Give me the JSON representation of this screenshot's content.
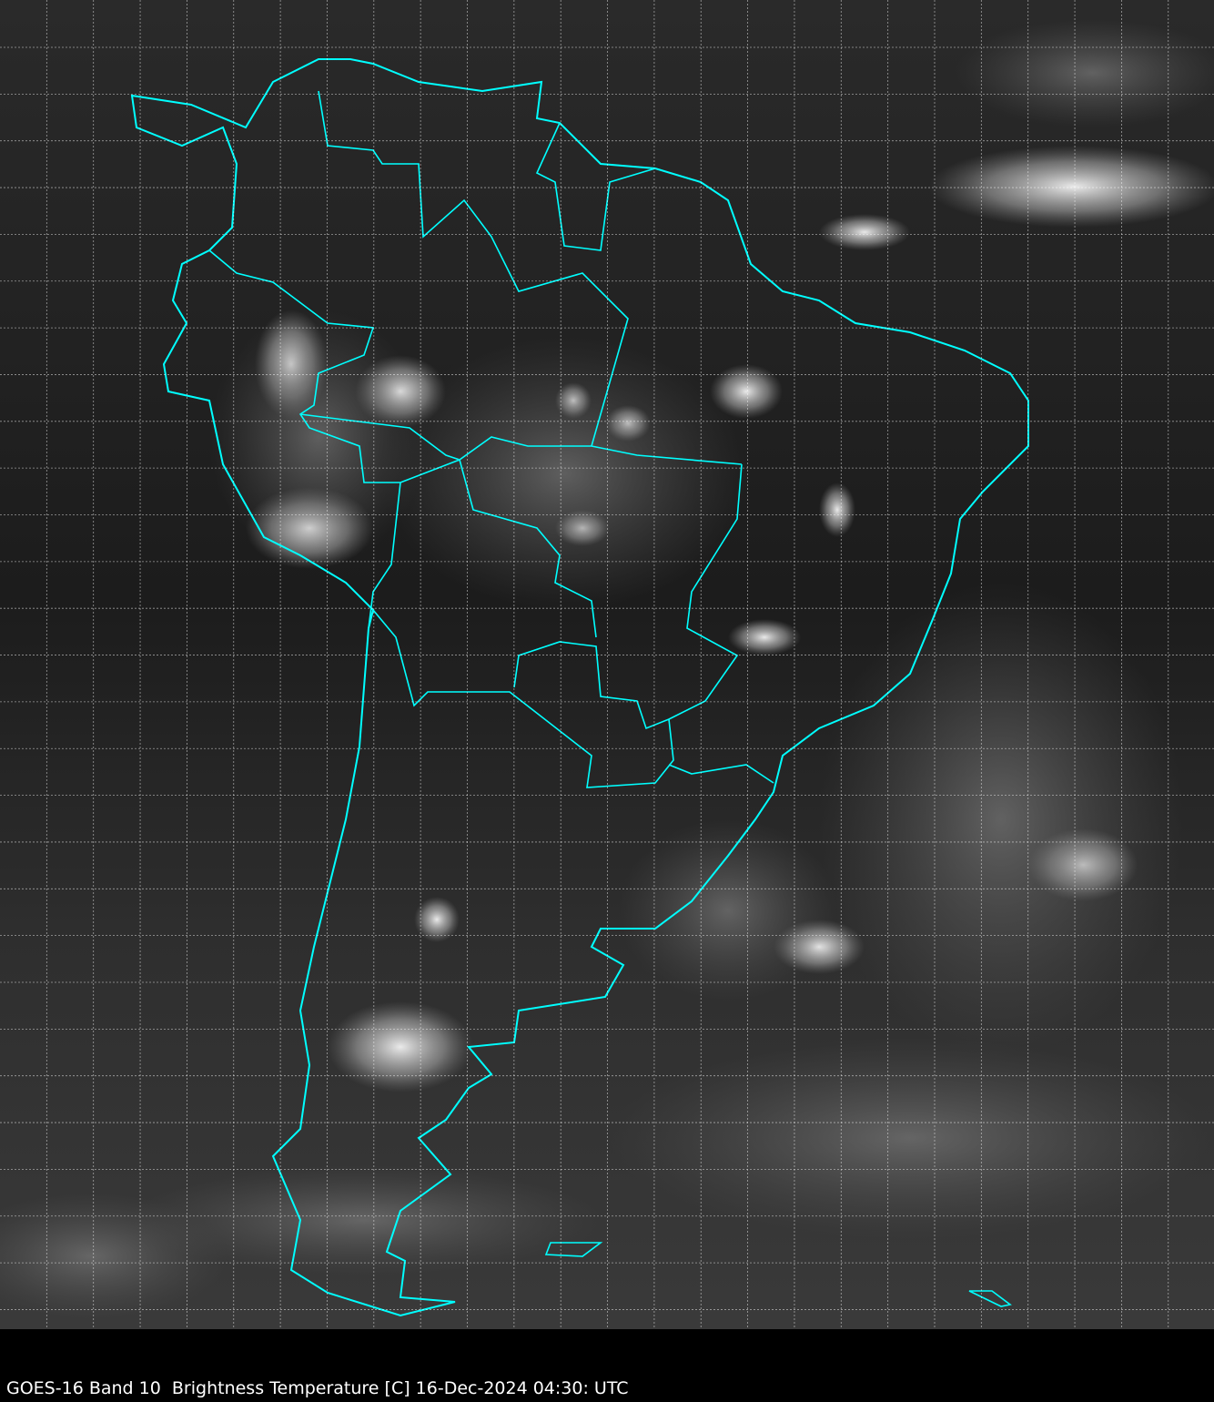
{
  "caption": "GOES-16 Band 10  Brightness Temperature [C] 16-Dec-2024 04:30: UTC",
  "map": {
    "satellite": "GOES-16",
    "band": "Band 10",
    "quantity": "Brightness Temperature [C]",
    "colormap": "grayscale",
    "coastline_color": "#00ffff",
    "grid_color": "#ffffff",
    "grid": true
  }
}
